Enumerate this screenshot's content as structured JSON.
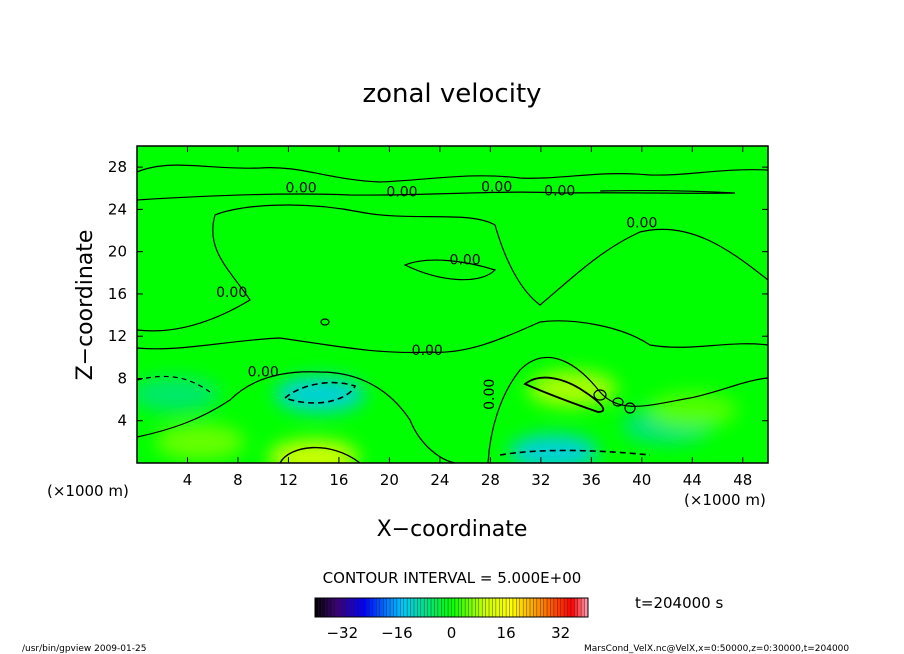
{
  "chart_data": {
    "type": "contour",
    "title": "zonal velocity",
    "xlabel": "X−coordinate",
    "ylabel": "Z−coordinate",
    "x_unit": "(×1000 m)",
    "y_unit": "(×1000 m)",
    "xlim": [
      0,
      50
    ],
    "ylim": [
      0,
      30
    ],
    "x_ticks": [
      "4",
      "8",
      "12",
      "16",
      "20",
      "24",
      "28",
      "32",
      "36",
      "40",
      "44",
      "48"
    ],
    "x_tick_values": [
      4,
      8,
      12,
      16,
      20,
      24,
      28,
      32,
      36,
      40,
      44,
      48
    ],
    "y_ticks": [
      "4",
      "8",
      "12",
      "16",
      "20",
      "24",
      "28"
    ],
    "y_tick_values": [
      4,
      8,
      12,
      16,
      20,
      24,
      28
    ],
    "contour_interval_text": "CONTOUR INTERVAL = 5.000E+00",
    "time_text": "t=204000 s",
    "contour_labels": [
      {
        "text": "0.00",
        "x": 13.0,
        "y": 25.6
      },
      {
        "text": "0.00",
        "x": 21.0,
        "y": 25.2
      },
      {
        "text": "0.00",
        "x": 28.5,
        "y": 25.7
      },
      {
        "text": "0.00",
        "x": 33.5,
        "y": 25.3
      },
      {
        "text": "0.00",
        "x": 40.0,
        "y": 22.3
      },
      {
        "text": "0.00",
        "x": 26.0,
        "y": 18.8
      },
      {
        "text": "0.00",
        "x": 7.5,
        "y": 15.7
      },
      {
        "text": "0.00",
        "x": 23.0,
        "y": 10.2
      },
      {
        "text": "0.00",
        "x": 10.0,
        "y": 8.2
      },
      {
        "text": "0.00",
        "x": 28.3,
        "y": 6.5
      }
    ],
    "field_features": [
      {
        "kind": "min",
        "x": 14.5,
        "y": 6.5,
        "value": -12
      },
      {
        "kind": "min",
        "x": 33.0,
        "y": 1.0,
        "value": -12
      },
      {
        "kind": "min",
        "x": 42.0,
        "y": 3.5,
        "value": -7
      },
      {
        "kind": "min",
        "x": 3.0,
        "y": 6.5,
        "value": -6
      },
      {
        "kind": "max",
        "x": 34.5,
        "y": 7.0,
        "value": 8
      },
      {
        "kind": "max",
        "x": 14.0,
        "y": 0.5,
        "value": 10
      },
      {
        "kind": "max",
        "x": 5.0,
        "y": 2.0,
        "value": 5
      },
      {
        "kind": "max",
        "x": 44.0,
        "y": 5.0,
        "value": 4
      }
    ],
    "colorbar": {
      "range": [
        -40,
        40
      ],
      "tick_labels": [
        "−32",
        "−16",
        "0",
        "16",
        "32"
      ],
      "tick_values": [
        -32,
        -16,
        0,
        16,
        32
      ]
    }
  },
  "footer": {
    "left_text": "/usr/bin/gpview   2009-01-25",
    "right_text": "MarsCond_VelX.nc@VelX,x=0:50000,z=0:30000,t=204000"
  }
}
